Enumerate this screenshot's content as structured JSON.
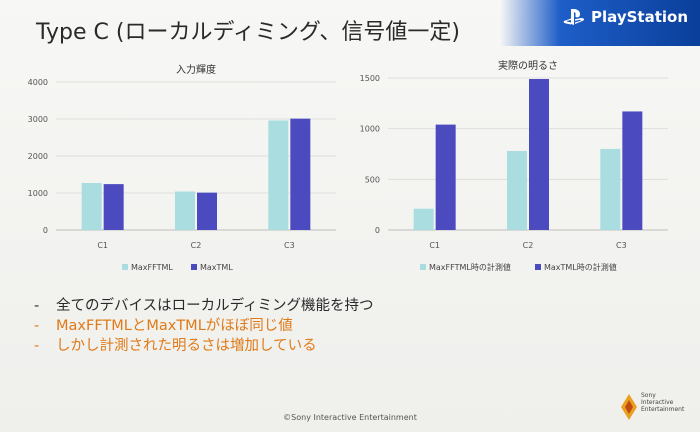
{
  "slide": {
    "title": "Type C (ローカルディミング、信号値一定)",
    "brand": "PlayStation",
    "copyright": "©Sony Interactive Entertainment",
    "sie_lines": [
      "Sony",
      "Interactive",
      "Entertainment"
    ],
    "bullets": [
      "全てのデバイスはローカルディミング機能を持つ",
      "MaxFFTMLとMaxTMLがほぼ同じ値",
      "しかし計測された明るさは増加している"
    ],
    "dash": "-",
    "colors": {
      "light_bar": "#a9dde0",
      "dark_bar": "#4b4bbf",
      "accent": "#e07a18"
    }
  },
  "chart_data": [
    {
      "type": "bar",
      "title": "入力輝度",
      "categories": [
        "C1",
        "C2",
        "C3"
      ],
      "series": [
        {
          "name": "MaxFFTML",
          "values": [
            1270,
            1040,
            2960
          ]
        },
        {
          "name": "MaxTML",
          "values": [
            1240,
            1010,
            3010
          ]
        }
      ],
      "ylim": [
        0,
        4000
      ],
      "yticks": [
        0,
        1000,
        2000,
        3000,
        4000
      ],
      "grid": true,
      "legend": "bottom"
    },
    {
      "type": "bar",
      "title": "実際の明るさ",
      "categories": [
        "C1",
        "C2",
        "C3"
      ],
      "series": [
        {
          "name": "MaxFFTML時の計測値",
          "values": [
            210,
            780,
            800
          ]
        },
        {
          "name": "MaxTML時の計測値",
          "values": [
            1040,
            1490,
            1170
          ]
        }
      ],
      "ylim": [
        0,
        1500
      ],
      "yticks": [
        0,
        500,
        1000,
        1500
      ],
      "grid": true,
      "legend": "bottom"
    }
  ]
}
